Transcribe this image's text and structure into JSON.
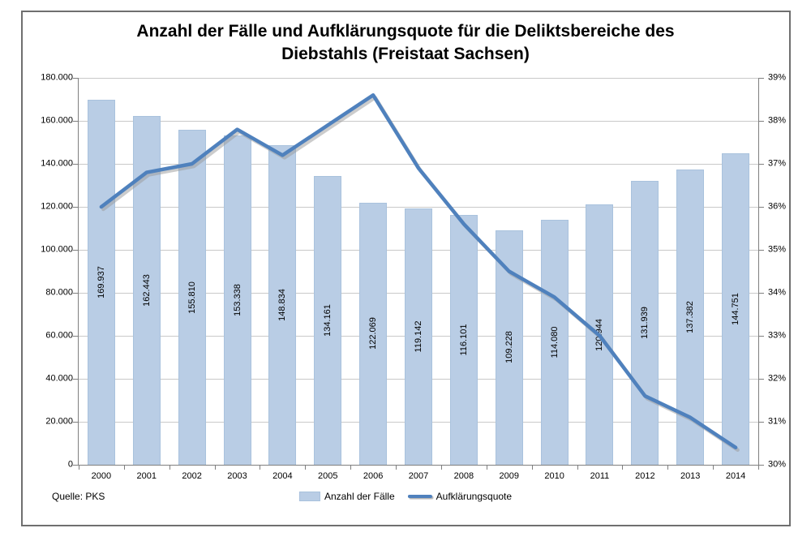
{
  "footer": {
    "source": "Quelle: PKS"
  },
  "colors": {
    "bar_fill": "#b9cde5",
    "bar_edge": "#a9c2dd",
    "line": "#4f81bd",
    "gridline": "#c9c9c9",
    "axis": "#7f7f7f",
    "frame_border": "#6f6f6f",
    "text": "#000000"
  },
  "chart_data": {
    "type": "bar",
    "combo": "bar+line",
    "title": "Anzahl der Fälle und Aufklärungsquote für die Deliktsbereiche des Diebstahls (Freistaat Sachsen)",
    "title_lines": [
      "Anzahl der Fälle und Aufklärungsquote für die Deliktsbereiche des",
      "Diebstahls (Freistaat Sachsen)"
    ],
    "categories": [
      "2000",
      "2001",
      "2002",
      "2003",
      "2004",
      "2005",
      "2006",
      "2007",
      "2008",
      "2009",
      "2010",
      "2011",
      "2012",
      "2013",
      "2014"
    ],
    "series": [
      {
        "name": "Anzahl der Fälle",
        "type": "bar",
        "axis": "left",
        "color": "#b9cde5",
        "values": [
          169937,
          162443,
          155810,
          153338,
          148834,
          134161,
          122069,
          119142,
          116101,
          109228,
          114080,
          120944,
          131939,
          137382,
          144751
        ],
        "labels": [
          "169.937",
          "162.443",
          "155.810",
          "153.338",
          "148.834",
          "134.161",
          "122.069",
          "119.142",
          "116.101",
          "109.228",
          "114.080",
          "120.944",
          "131.939",
          "137.382",
          "144.751"
        ]
      },
      {
        "name": "Aufklärungsquote",
        "type": "line",
        "axis": "right",
        "color": "#4f81bd",
        "values": [
          36.0,
          36.8,
          37.0,
          37.8,
          37.2,
          37.9,
          38.6,
          36.9,
          35.6,
          34.5,
          33.9,
          33.0,
          31.6,
          31.1,
          30.4
        ]
      }
    ],
    "left_axis": {
      "min": 0,
      "max": 180000,
      "step": 20000,
      "tick_labels": [
        "0",
        "20.000",
        "40.000",
        "60.000",
        "80.000",
        "100.000",
        "120.000",
        "140.000",
        "160.000",
        "180.000"
      ]
    },
    "right_axis": {
      "min": 30,
      "max": 39,
      "step": 1,
      "tick_labels": [
        "30%",
        "31%",
        "32%",
        "33%",
        "34%",
        "35%",
        "36%",
        "37%",
        "38%",
        "39%"
      ]
    },
    "grid": true,
    "legend_position": "bottom-center"
  }
}
